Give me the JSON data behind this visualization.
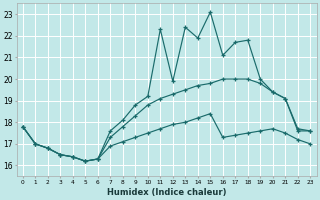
{
  "xlabel": "Humidex (Indice chaleur)",
  "xlim": [
    -0.5,
    23.5
  ],
  "ylim": [
    15.5,
    23.5
  ],
  "xticks": [
    0,
    1,
    2,
    3,
    4,
    5,
    6,
    7,
    8,
    9,
    10,
    11,
    12,
    13,
    14,
    15,
    16,
    17,
    18,
    19,
    20,
    21,
    22,
    23
  ],
  "yticks": [
    16,
    17,
    18,
    19,
    20,
    21,
    22,
    23
  ],
  "bg_color": "#c2e8e8",
  "grid_color": "#ffffff",
  "line_color": "#1a6b6b",
  "hours": [
    0,
    1,
    2,
    3,
    4,
    5,
    6,
    7,
    8,
    9,
    10,
    11,
    12,
    13,
    14,
    15,
    16,
    17,
    18,
    19,
    20,
    21,
    22,
    23
  ],
  "line_spike": [
    17.8,
    17.0,
    16.8,
    16.5,
    16.4,
    16.2,
    16.3,
    17.6,
    18.1,
    18.8,
    19.2,
    22.3,
    19.9,
    22.4,
    21.9,
    23.1,
    21.1,
    21.7,
    21.8,
    20.0,
    19.4,
    19.1,
    17.6,
    17.6
  ],
  "line_mid": [
    17.8,
    17.0,
    16.8,
    16.5,
    16.4,
    16.2,
    16.3,
    17.3,
    17.8,
    18.3,
    18.8,
    19.1,
    19.3,
    19.5,
    19.7,
    19.8,
    20.0,
    20.0,
    20.0,
    19.8,
    19.4,
    19.1,
    17.7,
    17.6
  ],
  "line_low": [
    17.8,
    17.0,
    16.8,
    16.5,
    16.4,
    16.2,
    16.3,
    16.9,
    17.1,
    17.3,
    17.5,
    17.7,
    17.9,
    18.0,
    18.2,
    18.4,
    17.3,
    17.4,
    17.5,
    17.6,
    17.7,
    17.5,
    17.2,
    17.0
  ]
}
